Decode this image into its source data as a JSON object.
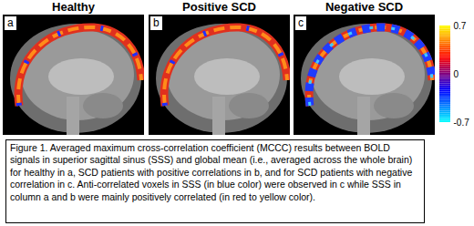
{
  "panels": [
    {
      "letter": "a",
      "title": "Healthy",
      "kind": "positive"
    },
    {
      "letter": "b",
      "title": "Positive SCD",
      "kind": "positive"
    },
    {
      "letter": "c",
      "title": "Negative SCD",
      "kind": "negative"
    }
  ],
  "caption": "Figure 1. Averaged maximum cross-correlation coefficient (MCCC) results between BOLD signals in superior sagittal sinus (SSS) and global mean (i.e., averaged across the whole brain) for healthy in a, SCD patients with positive correlations in b, and for SCD patients with negative correlation in c. Anti-correlated voxels in SSS (in blue color) were observed in c while SSS in column a and b were mainly positively correlated (in red to yellow color).",
  "chart_data": {
    "type": "colorbar",
    "ylim": [
      -0.7,
      0.7
    ],
    "yticks": [
      0.7,
      0,
      -0.7
    ],
    "colors": [
      "#00ffff",
      "#0000ff",
      "#ff0000",
      "#ffff00"
    ]
  }
}
